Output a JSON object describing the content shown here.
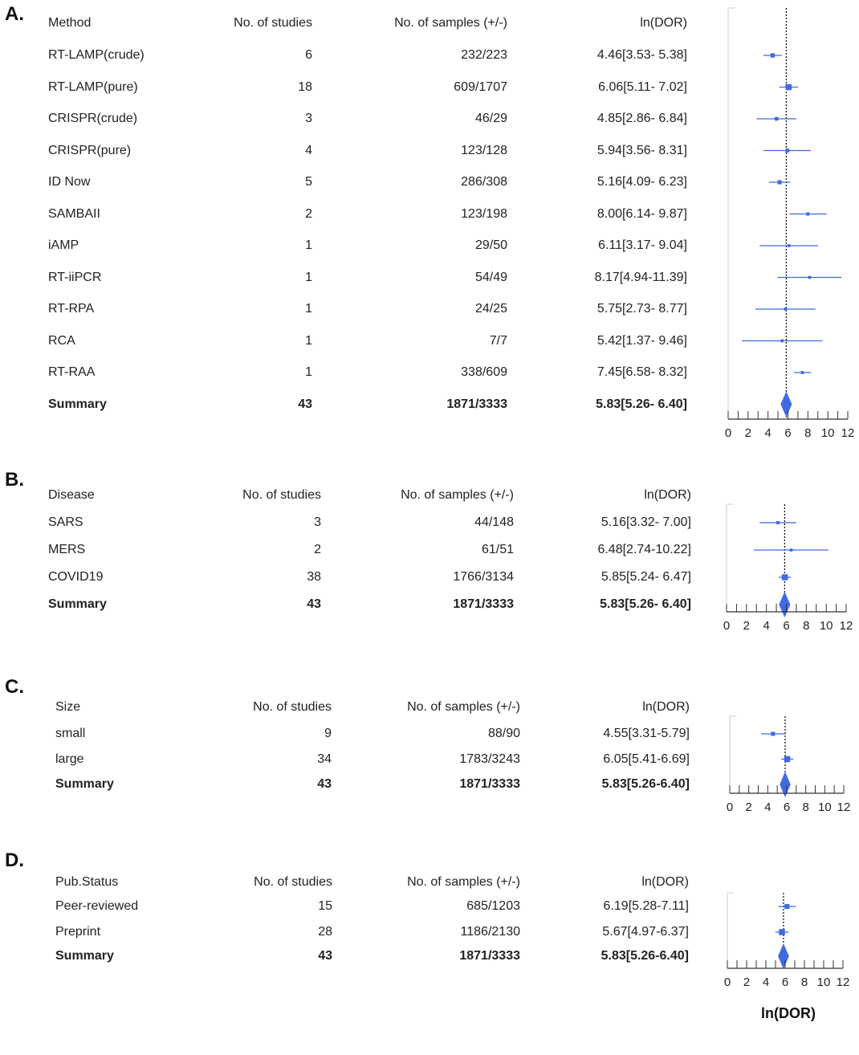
{
  "colors": {
    "marker": "#4169e1",
    "axis": "#333333",
    "reference_line": "#000000"
  },
  "xlabel": "ln(DOR)",
  "chart_data": [
    {
      "type": "forest",
      "panel": "A.",
      "columns": [
        "Method",
        "No. of studies",
        "No. of samples (+/-)",
        "ln(DOR)"
      ],
      "rows": [
        {
          "label": "RT-LAMP(crude)",
          "studies": "6",
          "samples": "232/223",
          "ci_text": "4.46[3.53- 5.38]",
          "est": 4.46,
          "lo": 3.53,
          "hi": 5.38
        },
        {
          "label": "RT-LAMP(pure)",
          "studies": "18",
          "samples": "609/1707",
          "ci_text": "6.06[5.11- 7.02]",
          "est": 6.06,
          "lo": 5.11,
          "hi": 7.02
        },
        {
          "label": "CRISPR(crude)",
          "studies": "3",
          "samples": "46/29",
          "ci_text": "4.85[2.86- 6.84]",
          "est": 4.85,
          "lo": 2.86,
          "hi": 6.84
        },
        {
          "label": "CRISPR(pure)",
          "studies": "4",
          "samples": "123/128",
          "ci_text": "5.94[3.56- 8.31]",
          "est": 5.94,
          "lo": 3.56,
          "hi": 8.31
        },
        {
          "label": "ID Now",
          "studies": "5",
          "samples": "286/308",
          "ci_text": "5.16[4.09- 6.23]",
          "est": 5.16,
          "lo": 4.09,
          "hi": 6.23
        },
        {
          "label": "SAMBAII",
          "studies": "2",
          "samples": "123/198",
          "ci_text": "8.00[6.14- 9.87]",
          "est": 8.0,
          "lo": 6.14,
          "hi": 9.87
        },
        {
          "label": "iAMP",
          "studies": "1",
          "samples": "29/50",
          "ci_text": "6.11[3.17- 9.04]",
          "est": 6.11,
          "lo": 3.17,
          "hi": 9.04
        },
        {
          "label": "RT-iiPCR",
          "studies": "1",
          "samples": "54/49",
          "ci_text": "8.17[4.94-11.39]",
          "est": 8.17,
          "lo": 4.94,
          "hi": 11.39
        },
        {
          "label": "RT-RPA",
          "studies": "1",
          "samples": "24/25",
          "ci_text": "5.75[2.73- 8.77]",
          "est": 5.75,
          "lo": 2.73,
          "hi": 8.77
        },
        {
          "label": "RCA",
          "studies": "1",
          "samples": "7/7",
          "ci_text": "5.42[1.37- 9.46]",
          "est": 5.42,
          "lo": 1.37,
          "hi": 9.46
        },
        {
          "label": "RT-RAA",
          "studies": "1",
          "samples": "338/609",
          "ci_text": "7.45[6.58- 8.32]",
          "est": 7.45,
          "lo": 6.58,
          "hi": 8.32
        }
      ],
      "summary": {
        "label": "Summary",
        "studies": "43",
        "samples": "1871/3333",
        "ci_text": "5.83[5.26- 6.40]",
        "est": 5.83,
        "lo": 5.26,
        "hi": 6.4
      },
      "xlim": [
        0,
        12
      ],
      "ticks": [
        0,
        2,
        4,
        6,
        8,
        10,
        12
      ],
      "reference": 5.83
    },
    {
      "type": "forest",
      "panel": "B.",
      "columns": [
        "Disease",
        "No. of studies",
        "No. of samples (+/-)",
        "ln(DOR)"
      ],
      "rows": [
        {
          "label": "SARS",
          "studies": "3",
          "samples": "44/148",
          "ci_text": "5.16[3.32- 7.00]",
          "est": 5.16,
          "lo": 3.32,
          "hi": 7.0
        },
        {
          "label": "MERS",
          "studies": "2",
          "samples": "61/51",
          "ci_text": "6.48[2.74-10.22]",
          "est": 6.48,
          "lo": 2.74,
          "hi": 10.22
        },
        {
          "label": "COVID19",
          "studies": "38",
          "samples": "1766/3134",
          "ci_text": "5.85[5.24- 6.47]",
          "est": 5.85,
          "lo": 5.24,
          "hi": 6.47
        }
      ],
      "summary": {
        "label": "Summary",
        "studies": "43",
        "samples": "1871/3333",
        "ci_text": "5.83[5.26- 6.40]",
        "est": 5.83,
        "lo": 5.26,
        "hi": 6.4
      },
      "xlim": [
        0,
        12
      ],
      "ticks": [
        0,
        2,
        4,
        6,
        8,
        10,
        12
      ],
      "reference": 5.83
    },
    {
      "type": "forest",
      "panel": "C.",
      "columns": [
        "Size",
        "No. of studies",
        "No. of samples (+/-)",
        "ln(DOR)"
      ],
      "rows": [
        {
          "label": "small",
          "studies": "9",
          "samples": "88/90",
          "ci_text": "4.55[3.31-5.79]",
          "est": 4.55,
          "lo": 3.31,
          "hi": 5.79
        },
        {
          "label": "large",
          "studies": "34",
          "samples": "1783/3243",
          "ci_text": "6.05[5.41-6.69]",
          "est": 6.05,
          "lo": 5.41,
          "hi": 6.69
        }
      ],
      "summary": {
        "label": "Summary",
        "studies": "43",
        "samples": "1871/3333",
        "ci_text": "5.83[5.26-6.40]",
        "est": 5.83,
        "lo": 5.26,
        "hi": 6.4
      },
      "xlim": [
        0,
        12
      ],
      "ticks": [
        0,
        2,
        4,
        6,
        8,
        10,
        12
      ],
      "reference": 5.83
    },
    {
      "type": "forest",
      "panel": "D.",
      "columns": [
        "Pub.Status",
        "No. of studies",
        "No. of samples (+/-)",
        "ln(DOR)"
      ],
      "rows": [
        {
          "label": "Peer-reviewed",
          "studies": "15",
          "samples": "685/1203",
          "ci_text": "6.19[5.28-7.11]",
          "est": 6.19,
          "lo": 5.28,
          "hi": 7.11
        },
        {
          "label": "Preprint",
          "studies": "28",
          "samples": "1186/2130",
          "ci_text": "5.67[4.97-6.37]",
          "est": 5.67,
          "lo": 4.97,
          "hi": 6.37
        }
      ],
      "summary": {
        "label": "Summary",
        "studies": "43",
        "samples": "1871/3333",
        "ci_text": "5.83[5.26-6.40]",
        "est": 5.83,
        "lo": 5.26,
        "hi": 6.4
      },
      "xlim": [
        0,
        12
      ],
      "ticks": [
        0,
        2,
        4,
        6,
        8,
        10,
        12
      ],
      "reference": 5.83
    }
  ]
}
